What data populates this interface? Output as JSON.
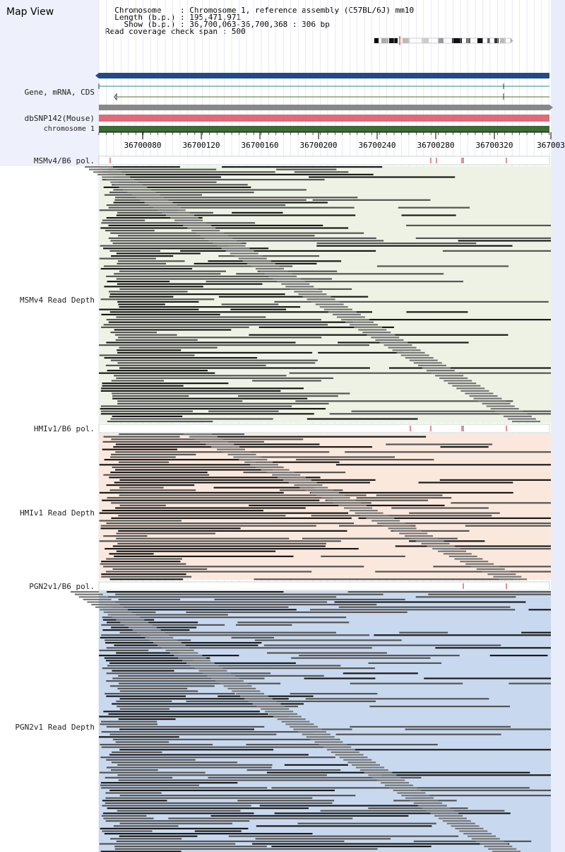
{
  "app": {
    "title": "Map View"
  },
  "info": {
    "chromosome_label": "Chromosome",
    "chromosome_value": "Chromosome 1, reference assembly (C57BL/6J) mm10",
    "length_label": "Length (b.p.)",
    "length_value": "195,471,971",
    "show_label": "Show (b.p.)",
    "show_value": "36,700,063-36,700,368 : 306 bp",
    "span_label": "Read coverage check span",
    "span_value": "500"
  },
  "tracks": {
    "gene": "Gene, mRNA, CDS",
    "snp": "dbSNP142(Mouse)",
    "chromosome": "chromosome 1",
    "msm_pol": "MSMv4/B6 pol.",
    "msm_depth": "MSMv4 Read Depth",
    "hmi_pol": "HMIv1/B6 pol.",
    "hmi_depth": "HMIv1 Read Depth",
    "pgn_pol": "PGN2v1/B6 pol.",
    "pgn_depth": "PGN2v1 Read Depth"
  },
  "ruler": {
    "ticks": [
      "36700080",
      "36700120",
      "36700160",
      "36700200",
      "36700240",
      "36700280",
      "36700320",
      "367003"
    ]
  },
  "colors": {
    "msm_bg": "#eef2e4",
    "hmi_bg": "#fbe8dc",
    "pgn_bg": "#c8d8ee",
    "snp": "#e06a7a",
    "chrom": "#3d6b34",
    "gene_blue": "#1f4b87"
  }
}
